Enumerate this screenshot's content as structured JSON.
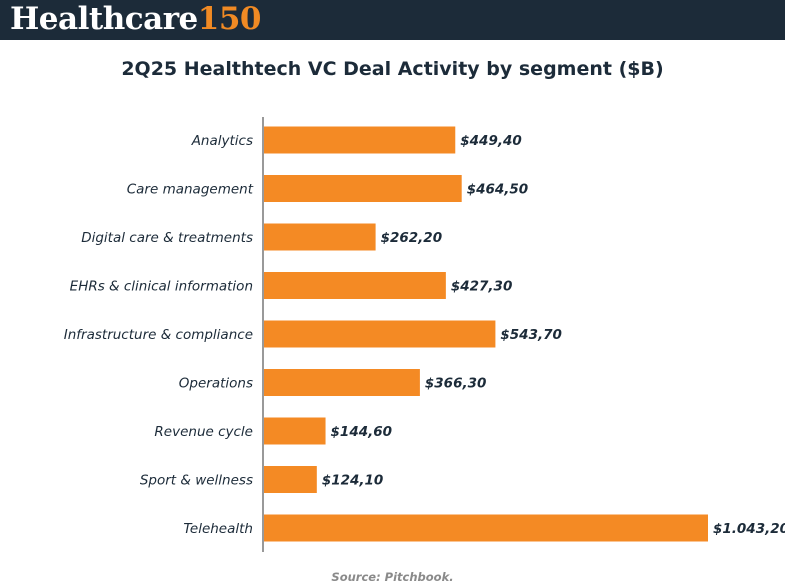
{
  "header": {
    "brand_text": "Healthcare",
    "brand_number": "150",
    "background_color": "#1c2b39",
    "accent_color": "#f08a24"
  },
  "chart_data": {
    "type": "bar",
    "orientation": "horizontal",
    "title": "2Q25 Healthtech VC Deal Activity by segment ($B)",
    "categories": [
      "Analytics",
      "Care management",
      "Digital care & treatments",
      "EHRs & clinical information",
      "Infrastructure & compliance",
      "Operations",
      "Revenue cycle",
      "Sport & wellness",
      "Telehealth"
    ],
    "values": [
      449.4,
      464.5,
      262.2,
      427.3,
      543.7,
      366.3,
      144.6,
      124.1,
      1043.2
    ],
    "value_labels": [
      "$449,40",
      "$464,50",
      "$262,20",
      "$427,30",
      "$543,70",
      "$366,30",
      "$144,60",
      "$124,10",
      "$1.043,20"
    ],
    "xlabel": "",
    "ylabel": "",
    "grid": false,
    "bar_color": "#f48a24",
    "axis_color": "#333333",
    "source": "Source: Pitchbook."
  }
}
